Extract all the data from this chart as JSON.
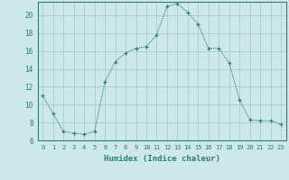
{
  "x": [
    0,
    1,
    2,
    3,
    4,
    5,
    6,
    7,
    8,
    9,
    10,
    11,
    12,
    13,
    14,
    15,
    16,
    17,
    18,
    19,
    20,
    21,
    22,
    23
  ],
  "y": [
    11,
    9,
    7,
    6.8,
    6.7,
    7,
    12.5,
    14.8,
    15.8,
    16.3,
    16.5,
    17.8,
    21.0,
    21.3,
    20.3,
    19.0,
    16.3,
    16.3,
    14.7,
    10.5,
    8.3,
    8.2,
    8.2,
    7.8
  ],
  "line_color": "#2e7d6e",
  "marker": "P",
  "marker_size": 2.5,
  "bg_color": "#cce8e8",
  "grid_color": "#aacccc",
  "xlabel": "Humidex (Indice chaleur)",
  "xlim": [
    -0.5,
    23.5
  ],
  "ylim": [
    6,
    21.5
  ],
  "yticks": [
    6,
    8,
    10,
    12,
    14,
    16,
    18,
    20
  ],
  "xtick_labels": [
    "0",
    "1",
    "2",
    "3",
    "4",
    "5",
    "6",
    "7",
    "8",
    "9",
    "10",
    "11",
    "12",
    "13",
    "14",
    "15",
    "16",
    "17",
    "18",
    "19",
    "20",
    "21",
    "22",
    "23"
  ],
  "tick_color": "#2e7d6e",
  "label_color": "#2e7d6e",
  "spine_color": "#2e7d6e"
}
